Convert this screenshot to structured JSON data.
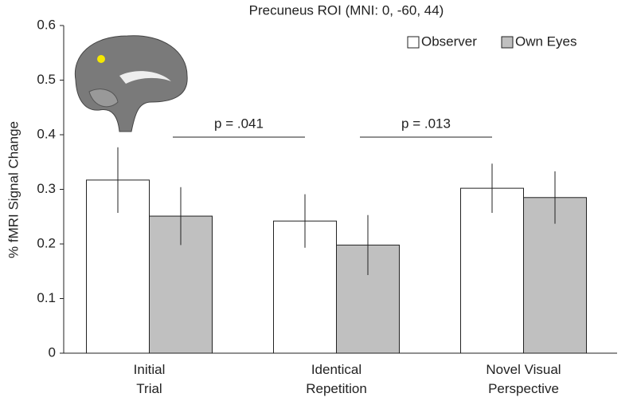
{
  "chart_data": {
    "type": "bar",
    "title": "Precuneus ROI (MNI: 0, -60, 44)",
    "y_label": "% fMRI Signal Change",
    "categories": [
      "Initial Trial",
      "Identical Repetition",
      "Novel Visual Perspective"
    ],
    "series": [
      {
        "name": "Observer",
        "color": "#ffffff",
        "values": [
          0.317,
          0.242,
          0.302
        ],
        "errors": [
          0.06,
          0.049,
          0.045
        ]
      },
      {
        "name": "Own Eyes",
        "color": "#c0c0c0",
        "values": [
          0.251,
          0.198,
          0.285
        ],
        "errors": [
          0.053,
          0.055,
          0.048
        ]
      }
    ],
    "annotations": [
      "p = .041",
      "p = .013"
    ],
    "ylim": [
      0,
      0.6
    ],
    "yticks": [
      0,
      0.1,
      0.2,
      0.3,
      0.4,
      0.5,
      0.6
    ],
    "grid": false,
    "legend": "top-right"
  }
}
